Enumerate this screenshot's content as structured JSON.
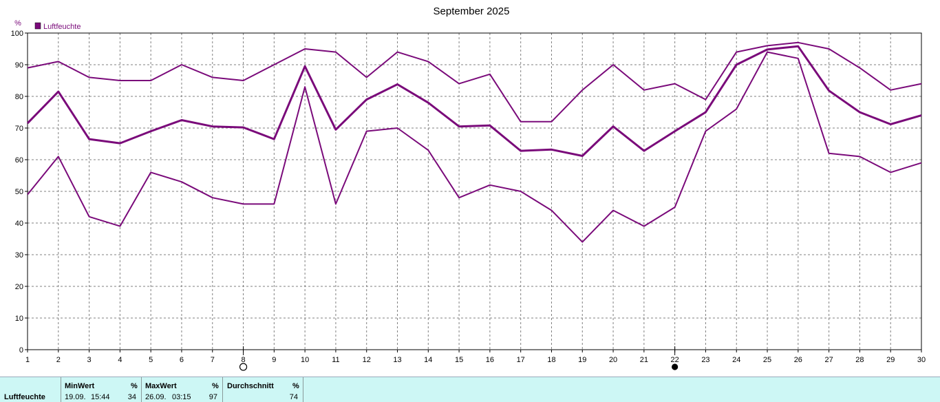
{
  "chart_data": {
    "type": "line",
    "title": "September 2025",
    "y_unit": "%",
    "legend": "Luftfeuchte",
    "legend_position": "top-left",
    "grid": true,
    "ylim": [
      0,
      100
    ],
    "yticks": [
      0,
      10,
      20,
      30,
      40,
      50,
      60,
      70,
      80,
      90,
      100
    ],
    "x": [
      1,
      2,
      3,
      4,
      5,
      6,
      7,
      8,
      9,
      10,
      11,
      12,
      13,
      14,
      15,
      16,
      17,
      18,
      19,
      20,
      21,
      22,
      23,
      24,
      25,
      26,
      27,
      28,
      29,
      30
    ],
    "series": [
      {
        "role": "max",
        "values": [
          89,
          91,
          86,
          85,
          85,
          90,
          86,
          85,
          90,
          95,
          94,
          86,
          94,
          91,
          84,
          87,
          72,
          72,
          82,
          90,
          82,
          84,
          79,
          94,
          96,
          97,
          95,
          89,
          82,
          84
        ]
      },
      {
        "role": "avg",
        "values": [
          71.5,
          81.5,
          66.5,
          65.2,
          69,
          72.5,
          70.5,
          70.2,
          66.5,
          89.5,
          69.5,
          79,
          83.8,
          78,
          70.5,
          70.8,
          62.8,
          63.2,
          61.2,
          70.5,
          62.8,
          69,
          75,
          90,
          94.8,
          95.8,
          81.8,
          75,
          71.2,
          74
        ]
      },
      {
        "role": "min",
        "values": [
          49,
          61,
          42,
          39,
          56,
          53,
          48,
          46,
          46,
          83,
          46,
          69,
          70,
          63,
          48,
          52,
          50,
          44,
          34,
          44,
          39,
          45,
          69,
          76,
          94,
          92,
          62,
          61,
          56,
          59
        ]
      }
    ],
    "color": "#7a0a7a",
    "moon_phases": [
      {
        "day": 8,
        "phase": "full-moon-icon"
      },
      {
        "day": 22,
        "phase": "new-moon-icon"
      }
    ]
  },
  "summary": {
    "row_label": "Luftfeuchte",
    "min_header": "MinWert",
    "min_unit": "%",
    "min_date": "19.09.",
    "min_time": "15:44",
    "min_value": "34",
    "max_header": "MaxWert",
    "max_unit": "%",
    "max_date": "26.09.",
    "max_time": "03:15",
    "max_value": "97",
    "avg_header": "Durchschnitt",
    "avg_unit": "%",
    "avg_value": "74"
  }
}
